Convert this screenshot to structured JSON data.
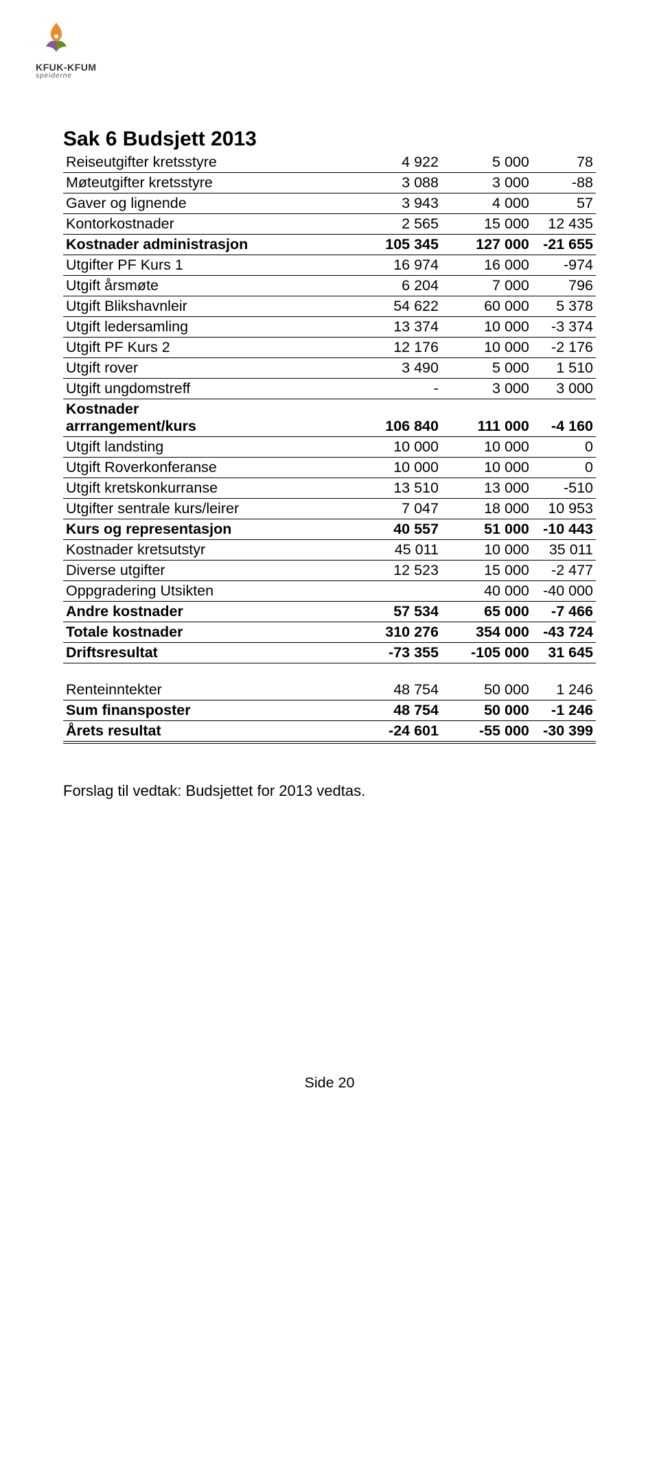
{
  "logo": {
    "line1": "KFUK-KFUM",
    "line2": "speiderne"
  },
  "title": "Sak 6 Budsjett 2013",
  "rows": [
    {
      "cls": "line-bottom",
      "label": "Reiseutgifter kretsstyre",
      "c1": "4 922",
      "c2": "5 000",
      "c3": "78"
    },
    {
      "cls": "line-bottom",
      "label": "Møteutgifter kretsstyre",
      "c1": "3 088",
      "c2": "3 000",
      "c3": "-88"
    },
    {
      "cls": "line-bottom",
      "label": "Gaver og lignende",
      "c1": "3 943",
      "c2": "4 000",
      "c3": "57"
    },
    {
      "cls": "line-bottom",
      "label": "Kontorkostnader",
      "c1": "2 565",
      "c2": "15 000",
      "c3": "12 435"
    },
    {
      "cls": "bold line-bottom",
      "label": "Kostnader administrasjon",
      "c1": "105 345",
      "c2": "127 000",
      "c3": "-21 655"
    },
    {
      "cls": "line-bottom",
      "label": "Utgifter PF Kurs 1",
      "c1": "16 974",
      "c2": "16 000",
      "c3": "-974"
    },
    {
      "cls": "line-bottom",
      "label": "Utgift årsmøte",
      "c1": "6 204",
      "c2": "7 000",
      "c3": "796"
    },
    {
      "cls": "line-bottom",
      "label": "Utgift Blikshavnleir",
      "c1": "54 622",
      "c2": "60 000",
      "c3": "5 378"
    },
    {
      "cls": "line-bottom",
      "label": "Utgift ledersamling",
      "c1": "13 374",
      "c2": "10 000",
      "c3": "-3 374"
    },
    {
      "cls": "line-bottom",
      "label": "Utgift PF Kurs 2",
      "c1": "12 176",
      "c2": "10 000",
      "c3": "-2 176"
    },
    {
      "cls": "line-bottom",
      "label": "Utgift rover",
      "c1": "3 490",
      "c2": "5 000",
      "c3": "1 510"
    },
    {
      "cls": "line-bottom",
      "label": "Utgift ungdomstreff",
      "c1": "-",
      "c2": "3 000",
      "c3": "3 000"
    },
    {
      "cls": "bold line-bottom",
      "label_html": "Kostnader<br>arrrangement/kurs",
      "c1": "106 840",
      "c2": "111 000",
      "c3": "-4 160"
    },
    {
      "cls": "line-bottom",
      "label": "Utgift landsting",
      "c1": "10 000",
      "c2": "10 000",
      "c3": "0"
    },
    {
      "cls": "line-bottom",
      "label": "Utgift Roverkonferanse",
      "c1": "10 000",
      "c2": "10 000",
      "c3": "0"
    },
    {
      "cls": "line-bottom",
      "label": "Utgift kretskonkurranse",
      "c1": "13 510",
      "c2": "13 000",
      "c3": "-510"
    },
    {
      "cls": "line-bottom",
      "label": "Utgifter sentrale kurs/leirer",
      "c1": "7 047",
      "c2": "18 000",
      "c3": "10 953"
    },
    {
      "cls": "bold line-bottom",
      "label": "Kurs og representasjon",
      "c1": "40 557",
      "c2": "51 000",
      "c3": "-10 443"
    },
    {
      "cls": "line-bottom",
      "label": "Kostnader kretsutstyr",
      "c1": "45 011",
      "c2": "10 000",
      "c3": "35 011"
    },
    {
      "cls": "line-bottom",
      "label": "Diverse utgifter",
      "c1": "12 523",
      "c2": "15 000",
      "c3": "-2 477"
    },
    {
      "cls": "line-bottom",
      "label": "Oppgradering Utsikten",
      "c1": "",
      "c2": "40 000",
      "c3": "-40 000"
    },
    {
      "cls": "bold line-bottom",
      "label": "Andre kostnader",
      "c1": "57 534",
      "c2": "65 000",
      "c3": "-7 466"
    },
    {
      "cls": "bold line-bottom",
      "label": "Totale kostnader",
      "c1": "310 276",
      "c2": "354 000",
      "c3": "-43 724"
    },
    {
      "cls": "bold line-bottom",
      "label": "Driftsresultat",
      "c1": "-73 355",
      "c2": "-105 000",
      "c3": "31 645"
    },
    {
      "cls": "spacer",
      "label": "",
      "c1": "",
      "c2": "",
      "c3": ""
    },
    {
      "cls": "",
      "label": "Renteinntekter",
      "c1": "48 754",
      "c2": "50 000",
      "c3": "1 246"
    },
    {
      "cls": "bold line-top line-bottom",
      "label": "Sum finansposter",
      "c1": "48 754",
      "c2": "50 000",
      "c3": "-1 246"
    },
    {
      "cls": "bold double-bottom",
      "label": "Årets resultat",
      "c1": "-24 601",
      "c2": "-55 000",
      "c3": "-30 399"
    }
  ],
  "vedtak": "Forslag til vedtak: Budsjettet for 2013 vedtas.",
  "footer": "Side 20",
  "colors": {
    "text": "#000000",
    "bg": "#ffffff",
    "logo_orange": "#e88b2e",
    "logo_green": "#6b8e23",
    "logo_purple": "#8b5a96"
  }
}
